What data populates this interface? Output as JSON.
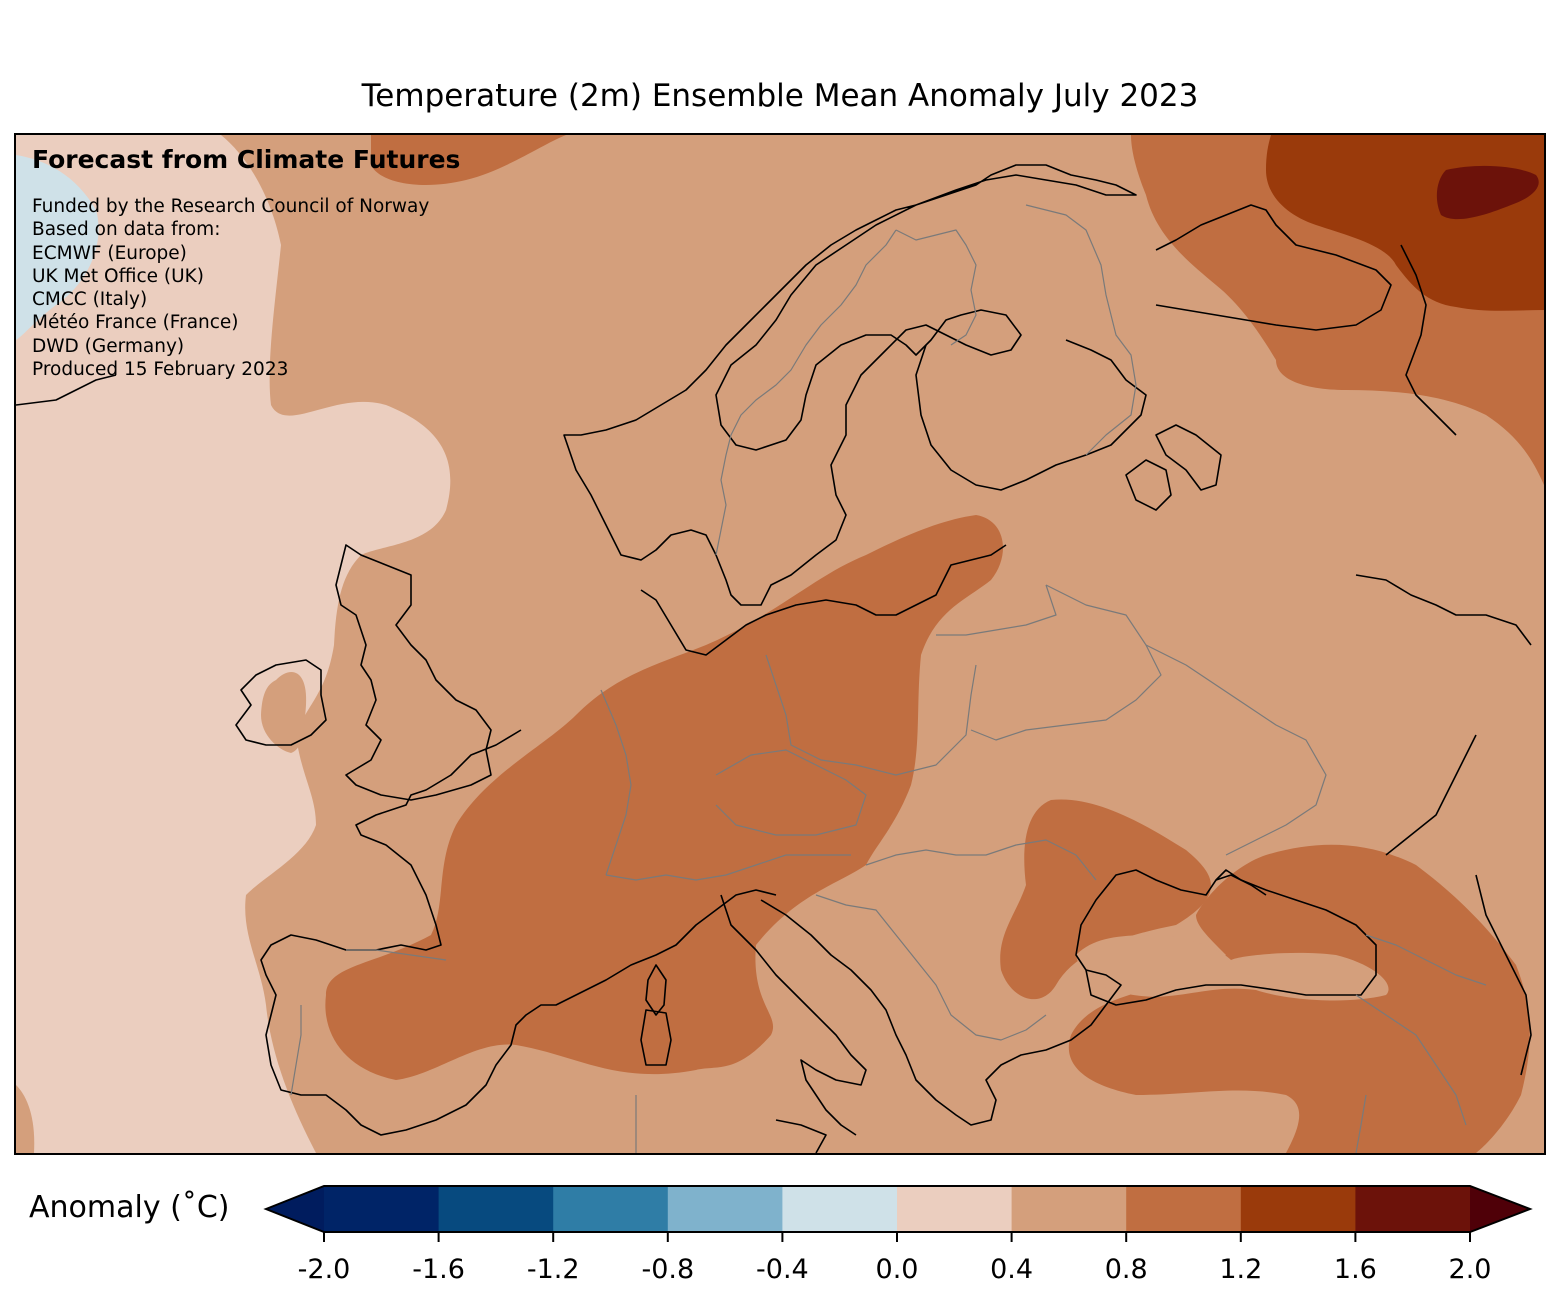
{
  "title": "Temperature (2m) Ensemble Mean Anomaly July 2023",
  "overlay": {
    "heading": "Forecast from Climate Futures",
    "lines": [
      "Funded by the Research Council of Norway",
      "Based on data from:",
      "ECMWF (Europe)",
      "UK Met Office (UK)",
      "CMCC (Italy)",
      "Météo France (France)",
      "DWD (Germany)",
      "Produced 15 February 2023"
    ]
  },
  "colorbar": {
    "label": "Anomaly (˚C)",
    "ticks": [
      "-2.0",
      "-1.6",
      "-1.2",
      "-0.8",
      "-0.4",
      "0.0",
      "0.4",
      "0.8",
      "1.2",
      "1.6",
      "2.0"
    ],
    "colors": [
      "#001c5e",
      "#002467",
      "#074a7f",
      "#2f7da6",
      "#7fb2cc",
      "#cfe1e8",
      "#ebcebf",
      "#d49f7c",
      "#c06e41",
      "#9a3a0b",
      "#6c120a",
      "#4f0008"
    ],
    "extend": "both"
  },
  "legend_colors": {
    "below_0": "#cfe1e8",
    "0.0_to_0.4": "#ebcebf",
    "0.4_to_0.8": "#d49f7c",
    "0.8_to_1.2": "#c06e41",
    "1.2_to_1.6": "#9a3a0b",
    "1.6_to_2.0": "#6c120a"
  }
}
